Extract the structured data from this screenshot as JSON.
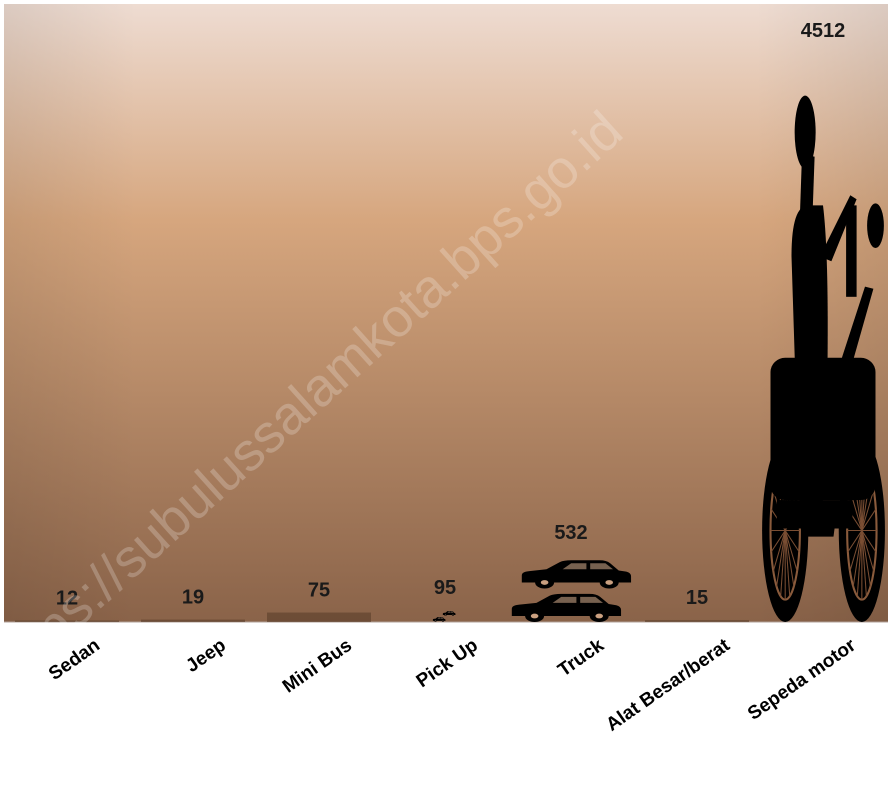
{
  "chart_data": {
    "type": "bar",
    "categories": [
      "Sedan",
      "Jeep",
      "Mini Bus",
      "Pick Up",
      "Truck",
      "Alat Besar/berat",
      "Sepeda motor"
    ],
    "values": [
      12,
      19,
      75,
      95,
      532,
      15,
      4512
    ],
    "bar_style": "pictograph vehicle icons",
    "ylim": [
      0,
      4900
    ],
    "grid": false,
    "legend": "none"
  },
  "watermark": "https://subulussalamkota.bps.go.id",
  "colors": {
    "background_top": "#eedcd2",
    "background_mid": "#d6a67e",
    "background_bottom": "#8a6349",
    "icon": "#000000"
  }
}
